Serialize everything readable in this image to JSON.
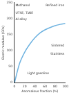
{
  "chart_data": {
    "type": "line",
    "x_label": "Anomalous fraction (%)",
    "y_label": "Elastic modulus (GPa)",
    "x": [
      0,
      10,
      20,
      30,
      40,
      50,
      60,
      70,
      80,
      90,
      100
    ],
    "values": [
      0,
      60,
      95,
      120,
      140,
      155,
      165,
      172,
      178,
      182,
      185
    ],
    "color": "#6fb3e0",
    "xlim": [
      0,
      100
    ],
    "xticks": [
      0,
      20,
      40,
      60,
      80,
      100
    ],
    "ylim": [
      0,
      250
    ],
    "yticks": [
      0,
      50,
      100,
      150,
      200,
      250
    ],
    "grid": false,
    "annotations": [
      {
        "text": "Methanol",
        "x": 2,
        "y": 240
      },
      {
        "text": "UTSE, TiAlE",
        "x": 2,
        "y": 218
      },
      {
        "text": "Al alloy",
        "x": 2,
        "y": 198
      },
      {
        "text": "Refined iron",
        "x": 98,
        "y": 240
      },
      {
        "text": "Sintered",
        "x": 98,
        "y": 115
      },
      {
        "text": "Stainless",
        "x": 98,
        "y": 90
      },
      {
        "text": "Light gasoline",
        "x": 25,
        "y": 30
      }
    ]
  }
}
